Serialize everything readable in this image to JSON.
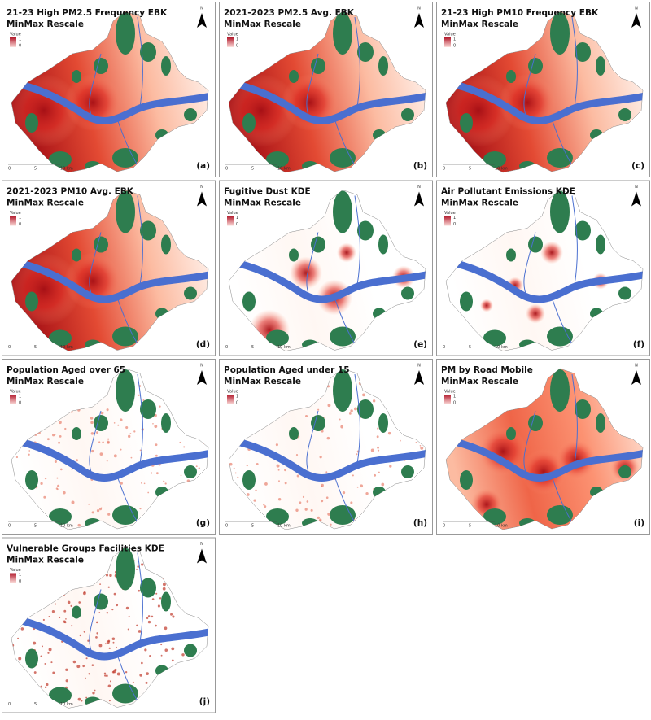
{
  "panels": [
    {
      "title": [
        "21-23 High PM2.5 Frequency EBK",
        "MinMax Rescale"
      ],
      "label": "(a)"
    },
    {
      "title": [
        "2021-2023 PM2.5 Avg. EBK",
        "MinMax Rescale"
      ],
      "label": "(b)"
    },
    {
      "title": [
        "21-23 High PM10 Frequency EBK",
        "MinMax Rescale"
      ],
      "label": "(c)"
    },
    {
      "title": [
        "2021-2023 PM10 Avg. EBK",
        "MinMax Rescale"
      ],
      "label": "(d)"
    },
    {
      "title": [
        "Fugitive Dust KDE",
        "MinMax Rescale"
      ],
      "label": "(e)"
    },
    {
      "title": [
        "Air Pollutant Emissions KDE",
        "MinMax Rescale"
      ],
      "label": "(f)"
    },
    {
      "title": [
        "Population Aged over 65",
        "MinMax Rescale"
      ],
      "label": "(g)"
    },
    {
      "title": [
        "Population Aged under 15",
        "MinMax Rescale"
      ],
      "label": "(h)"
    },
    {
      "title": [
        "PM by Road Mobile",
        "MinMax Rescale"
      ],
      "label": "(i)"
    },
    {
      "title": [
        "Vulnerable Groups Facilities KDE",
        "MinMax Rescale"
      ],
      "label": "(j)"
    }
  ],
  "legend": {
    "title": "Value",
    "max": "1",
    "min": "0"
  },
  "north": "N",
  "scale_bar": [
    "0",
    "5",
    "10 km"
  ]
}
